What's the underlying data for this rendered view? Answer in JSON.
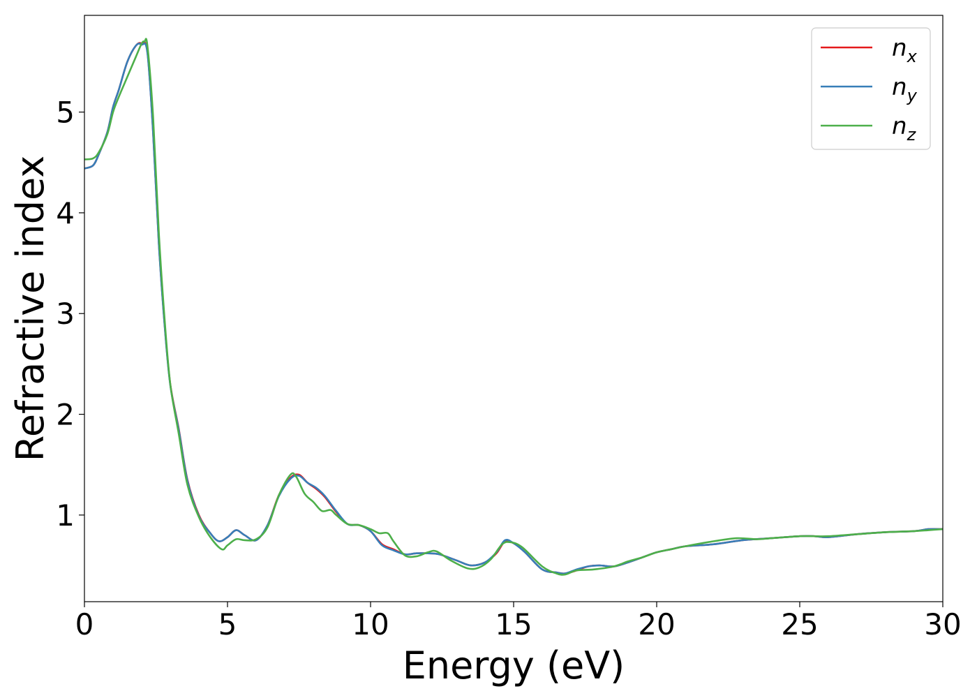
{
  "chart_data": {
    "type": "line",
    "xlabel": "Energy (eV)",
    "ylabel": "Refractive index",
    "xlim": [
      0,
      30
    ],
    "ylim": [
      0.14,
      5.96
    ],
    "xticks": [
      0,
      5,
      10,
      15,
      20,
      25,
      30
    ],
    "xtick_labels": [
      "0",
      "5",
      "10",
      "15",
      "20",
      "25",
      "30"
    ],
    "yticks": [
      1,
      2,
      3,
      4,
      5
    ],
    "ytick_labels": [
      "1",
      "2",
      "3",
      "4",
      "5"
    ],
    "grid": false,
    "legend_position": "top-right",
    "series": [
      {
        "name": "n_x",
        "label_base": "n",
        "label_sub": "x",
        "color": "#e41a1c",
        "x": [
          0,
          0.3,
          0.5,
          0.8,
          1.0,
          1.2,
          1.5,
          1.8,
          2.0,
          2.2,
          2.4,
          2.6,
          2.8,
          3.0,
          3.3,
          3.6,
          4.0,
          4.4,
          4.7,
          5.0,
          5.3,
          5.6,
          6.0,
          6.4,
          6.8,
          7.2,
          7.5,
          7.8,
          8.1,
          8.4,
          8.8,
          9.2,
          9.6,
          10.0,
          10.4,
          10.8,
          11.2,
          11.6,
          12.0,
          12.4,
          13.0,
          13.5,
          14.0,
          14.4,
          14.7,
          15.0,
          15.4,
          16.0,
          16.5,
          16.8,
          17.2,
          17.6,
          18.0,
          18.5,
          19.0,
          19.5,
          20.0,
          20.5,
          21.0,
          22.0,
          23.0,
          24.0,
          25.0,
          25.5,
          26.0,
          27.0,
          28.0,
          29.0,
          29.5,
          30.0
        ],
        "values": [
          4.44,
          4.47,
          4.58,
          4.8,
          5.05,
          5.22,
          5.5,
          5.66,
          5.68,
          5.6,
          4.8,
          3.7,
          2.9,
          2.3,
          1.85,
          1.35,
          1.0,
          0.82,
          0.74,
          0.78,
          0.85,
          0.8,
          0.75,
          0.9,
          1.2,
          1.37,
          1.4,
          1.32,
          1.26,
          1.18,
          1.03,
          0.91,
          0.9,
          0.84,
          0.71,
          0.66,
          0.61,
          0.62,
          0.62,
          0.61,
          0.55,
          0.5,
          0.53,
          0.62,
          0.74,
          0.72,
          0.63,
          0.46,
          0.43,
          0.42,
          0.45,
          0.49,
          0.5,
          0.49,
          0.53,
          0.58,
          0.63,
          0.66,
          0.69,
          0.71,
          0.75,
          0.77,
          0.79,
          0.79,
          0.78,
          0.81,
          0.83,
          0.84,
          0.86,
          0.86
        ]
      },
      {
        "name": "n_y",
        "label_base": "n",
        "label_sub": "y",
        "color": "#377eb8",
        "x": [
          0,
          0.3,
          0.5,
          0.8,
          1.0,
          1.2,
          1.5,
          1.8,
          2.0,
          2.2,
          2.4,
          2.6,
          2.8,
          3.0,
          3.3,
          3.6,
          4.0,
          4.4,
          4.7,
          5.0,
          5.3,
          5.6,
          6.0,
          6.4,
          6.8,
          7.2,
          7.5,
          7.8,
          8.1,
          8.4,
          8.8,
          9.2,
          9.6,
          10.0,
          10.4,
          10.8,
          11.2,
          11.6,
          12.0,
          12.4,
          13.0,
          13.5,
          14.0,
          14.4,
          14.7,
          15.0,
          15.4,
          16.0,
          16.5,
          16.8,
          17.2,
          17.6,
          18.0,
          18.5,
          19.0,
          19.5,
          20.0,
          20.5,
          21.0,
          22.0,
          23.0,
          24.0,
          25.0,
          25.5,
          26.0,
          27.0,
          28.0,
          29.0,
          29.5,
          30.0
        ],
        "values": [
          4.44,
          4.47,
          4.58,
          4.8,
          5.05,
          5.22,
          5.5,
          5.66,
          5.67,
          5.59,
          4.79,
          3.69,
          2.89,
          2.29,
          1.84,
          1.34,
          0.99,
          0.82,
          0.74,
          0.78,
          0.85,
          0.8,
          0.75,
          0.9,
          1.19,
          1.36,
          1.39,
          1.32,
          1.27,
          1.19,
          1.04,
          0.91,
          0.9,
          0.84,
          0.7,
          0.65,
          0.61,
          0.62,
          0.62,
          0.61,
          0.55,
          0.5,
          0.53,
          0.63,
          0.75,
          0.72,
          0.63,
          0.46,
          0.43,
          0.42,
          0.46,
          0.49,
          0.5,
          0.49,
          0.53,
          0.58,
          0.63,
          0.66,
          0.69,
          0.71,
          0.75,
          0.77,
          0.79,
          0.79,
          0.78,
          0.81,
          0.83,
          0.84,
          0.86,
          0.86
        ]
      },
      {
        "name": "n_z",
        "label_base": "n",
        "label_sub": "z",
        "color": "#4daf4a",
        "x": [
          0,
          0.3,
          0.5,
          0.8,
          1.0,
          1.2,
          1.5,
          1.8,
          2.0,
          2.1,
          2.2,
          2.4,
          2.6,
          2.8,
          3.0,
          3.3,
          3.6,
          4.0,
          4.4,
          4.8,
          5.0,
          5.3,
          5.6,
          6.0,
          6.4,
          6.8,
          7.2,
          7.4,
          7.7,
          8.0,
          8.3,
          8.6,
          8.8,
          9.2,
          9.6,
          10.0,
          10.3,
          10.6,
          10.8,
          11.2,
          11.6,
          12.0,
          12.3,
          12.8,
          13.4,
          13.8,
          14.2,
          14.6,
          14.9,
          15.3,
          16.0,
          16.5,
          16.8,
          17.2,
          17.8,
          18.5,
          19.0,
          19.5,
          20.0,
          20.5,
          21.0,
          22.0,
          22.8,
          23.5,
          24.0,
          25.0,
          25.5,
          26.0,
          27.0,
          28.0,
          29.0,
          29.5,
          30.0
        ],
        "values": [
          4.53,
          4.54,
          4.6,
          4.78,
          5.0,
          5.15,
          5.35,
          5.55,
          5.68,
          5.7,
          5.66,
          4.95,
          3.8,
          2.95,
          2.3,
          1.8,
          1.3,
          0.98,
          0.78,
          0.66,
          0.7,
          0.76,
          0.75,
          0.76,
          0.88,
          1.2,
          1.4,
          1.38,
          1.21,
          1.13,
          1.04,
          1.05,
          1.0,
          0.91,
          0.9,
          0.86,
          0.82,
          0.82,
          0.74,
          0.6,
          0.59,
          0.63,
          0.64,
          0.55,
          0.47,
          0.48,
          0.56,
          0.71,
          0.73,
          0.68,
          0.49,
          0.42,
          0.41,
          0.45,
          0.46,
          0.49,
          0.54,
          0.58,
          0.63,
          0.66,
          0.69,
          0.74,
          0.77,
          0.76,
          0.77,
          0.79,
          0.79,
          0.79,
          0.81,
          0.83,
          0.84,
          0.85,
          0.86
        ]
      }
    ]
  }
}
